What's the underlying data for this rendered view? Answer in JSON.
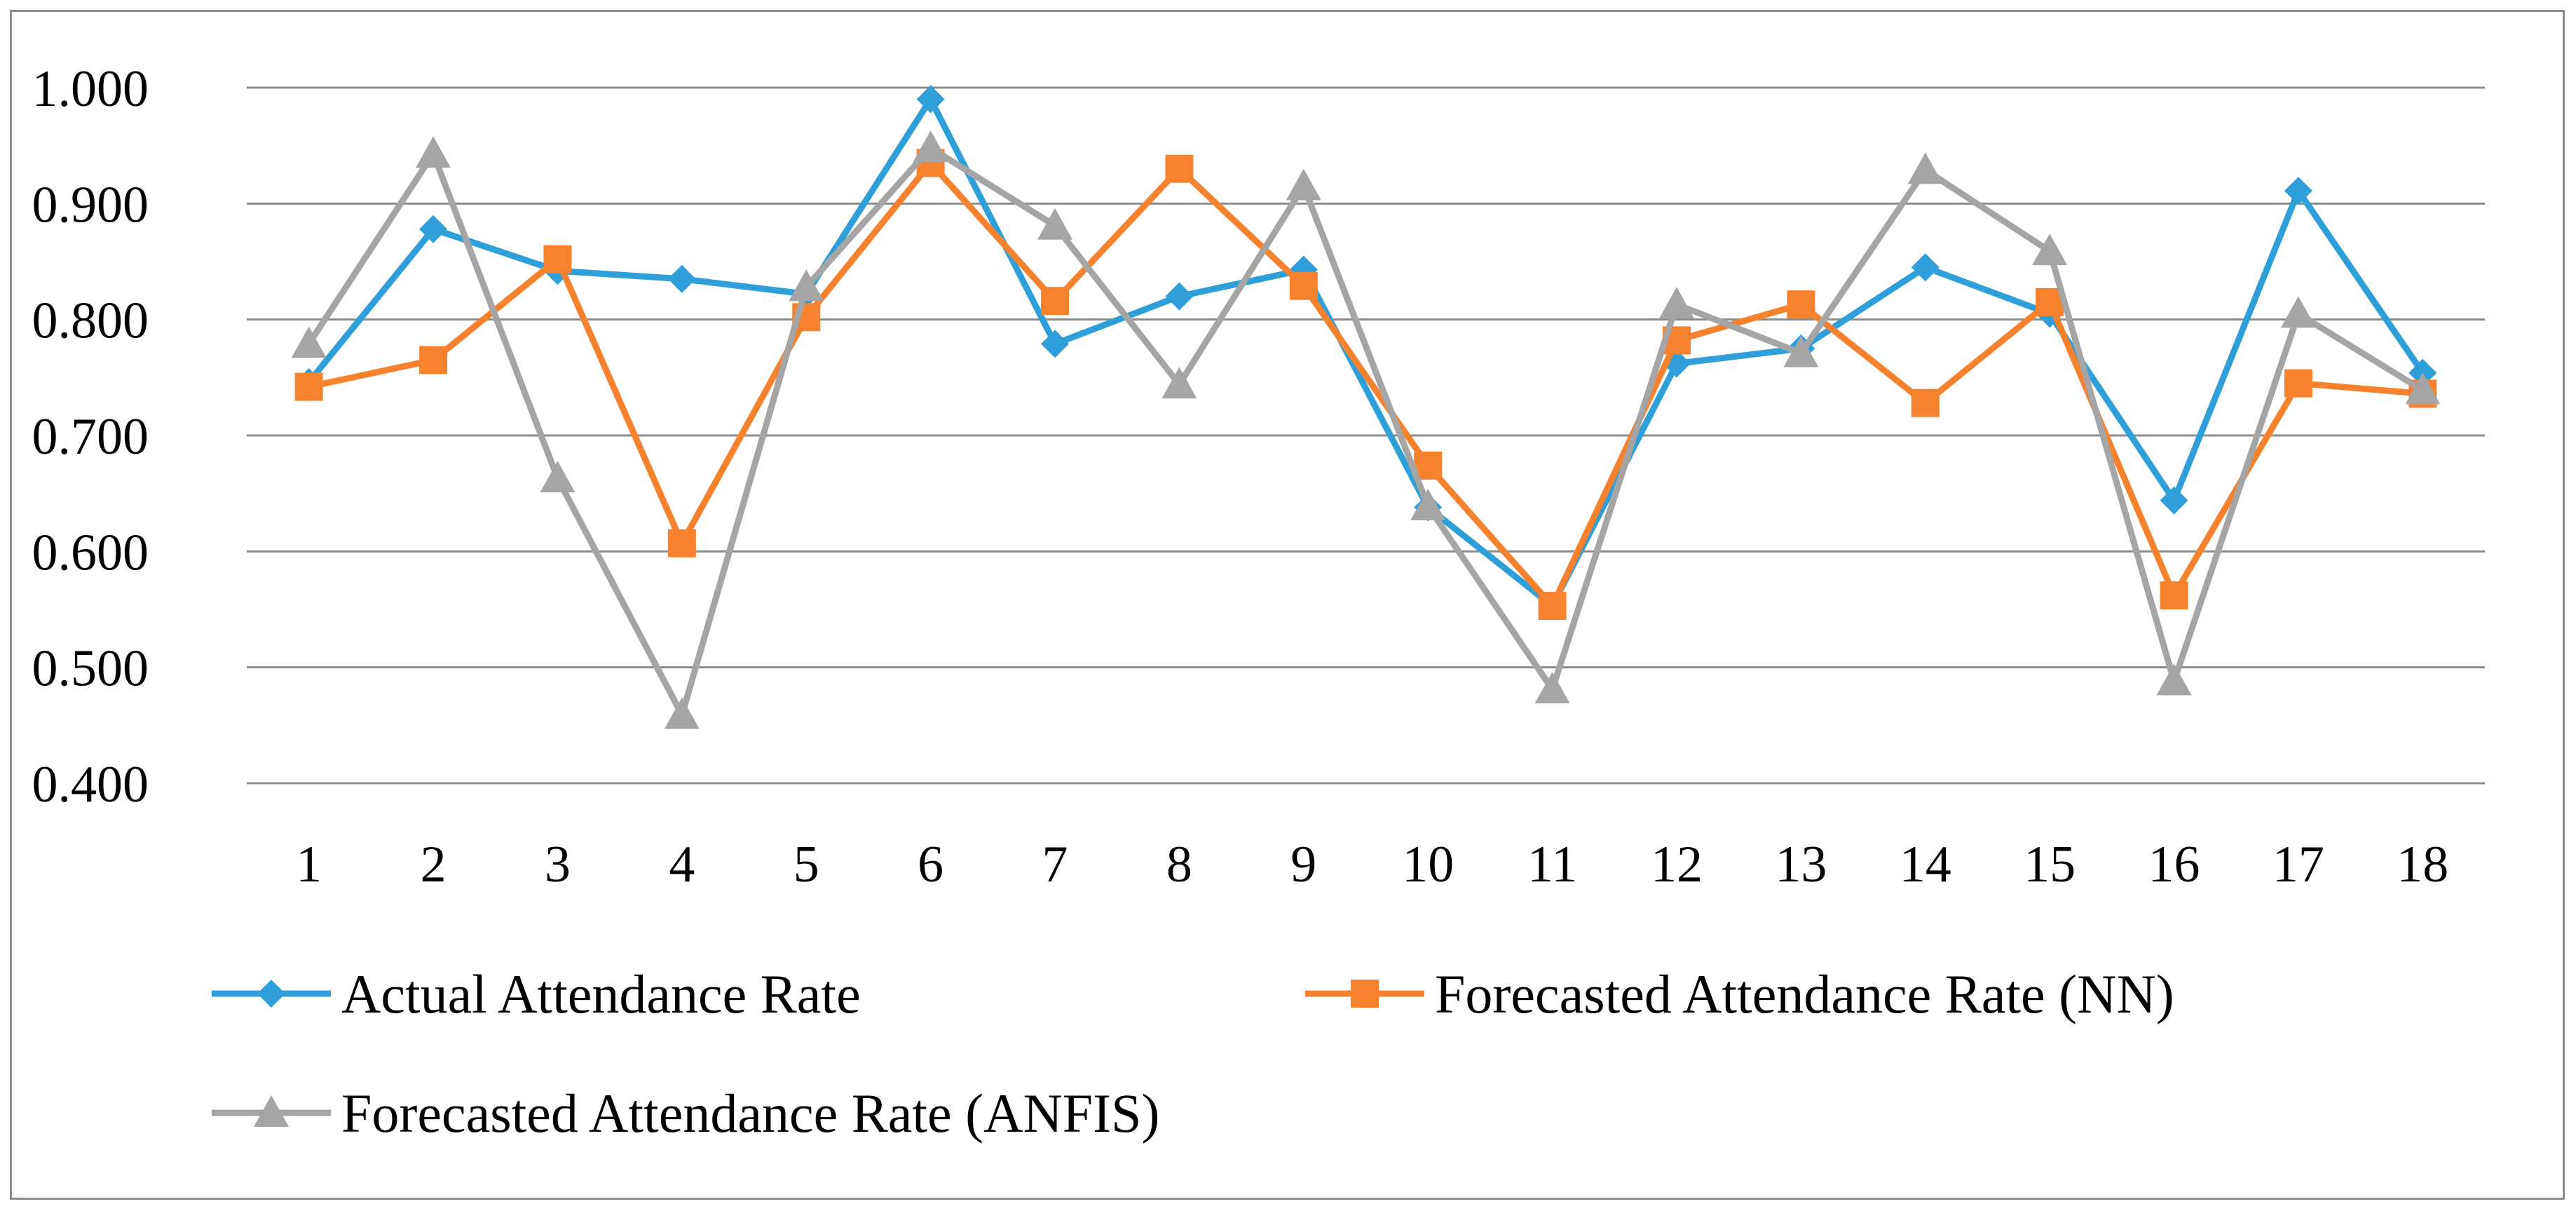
{
  "chart_data": {
    "type": "line",
    "title": "",
    "xlabel": "",
    "ylabel": "",
    "categories": [
      "1",
      "2",
      "3",
      "4",
      "5",
      "6",
      "7",
      "8",
      "9",
      "10",
      "11",
      "12",
      "13",
      "14",
      "15",
      "16",
      "17",
      "18"
    ],
    "ylim": [
      0.4,
      1.0
    ],
    "yticks": [
      "0.400",
      "0.500",
      "0.600",
      "0.700",
      "0.800",
      "0.900",
      "1.000"
    ],
    "grid": true,
    "legend_position": "bottom",
    "series": [
      {
        "name": "Actual Attendance Rate",
        "color": "#2e9fd8",
        "marker": "diamond",
        "values": [
          0.746,
          0.878,
          0.842,
          0.835,
          0.822,
          0.99,
          0.779,
          0.82,
          0.843,
          0.638,
          0.553,
          0.762,
          0.775,
          0.845,
          0.805,
          0.644,
          0.911,
          0.754
        ]
      },
      {
        "name": "Forecasted Attendance Rate (NN)",
        "color": "#f7822d",
        "marker": "square",
        "values": [
          0.742,
          0.765,
          0.852,
          0.607,
          0.802,
          0.935,
          0.816,
          0.93,
          0.829,
          0.674,
          0.553,
          0.782,
          0.813,
          0.728,
          0.815,
          0.562,
          0.745,
          0.736
        ]
      },
      {
        "name": "Forecasted Attendance Rate (ANFIS)",
        "color": "#a5a5a5",
        "marker": "triangle",
        "values": [
          0.779,
          0.943,
          0.663,
          0.459,
          0.828,
          0.948,
          0.881,
          0.744,
          0.915,
          0.639,
          0.481,
          0.813,
          0.771,
          0.929,
          0.859,
          0.488,
          0.805,
          0.739
        ]
      }
    ]
  }
}
